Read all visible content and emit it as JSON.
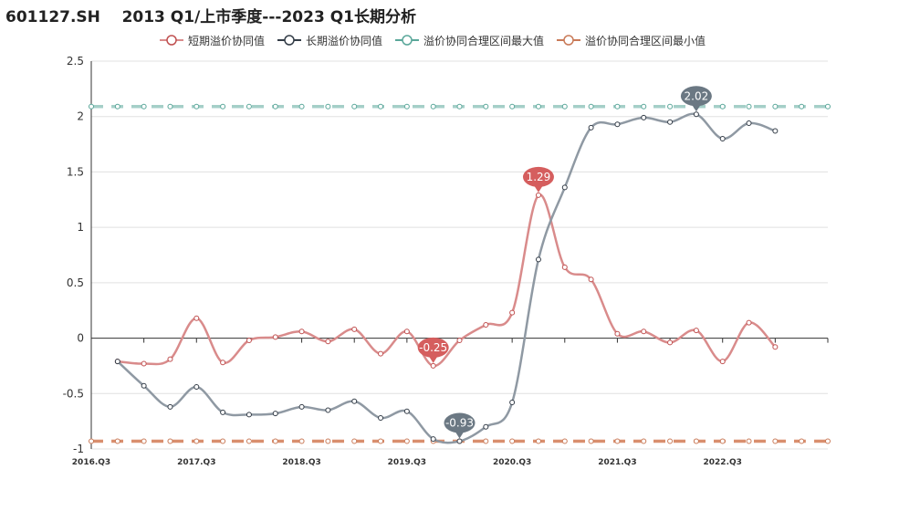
{
  "title": "601127.SH    2013 Q1/上市季度---2023 Q1长期分析",
  "colors": {
    "short": "#d98b8b",
    "short_marker": "#c05050",
    "long": "#8f99a3",
    "long_marker": "#333c47",
    "max": "#a5cfc8",
    "max_marker": "#5aa79a",
    "min": "#d98f6e",
    "min_marker": "#c97a58",
    "bubble_short": "#d55e5e",
    "bubble_long": "#6b7883",
    "grid": "#e0e0e0",
    "axis": "#333333"
  },
  "chart_data": {
    "type": "line",
    "x": [
      "2016.Q3",
      "2016.Q4",
      "2017.Q1",
      "2017.Q2",
      "2017.Q3",
      "2017.Q4",
      "2018.Q1",
      "2018.Q2",
      "2018.Q3",
      "2018.Q4",
      "2019.Q1",
      "2019.Q2",
      "2019.Q3",
      "2019.Q4",
      "2020.Q1",
      "2020.Q2",
      "2020.Q3",
      "2020.Q4",
      "2021.Q1",
      "2021.Q2",
      "2021.Q3",
      "2021.Q4",
      "2022.Q1",
      "2022.Q2",
      "2022.Q3",
      "2022.Q4",
      "2023.Q1",
      "2023.Q2",
      "2023.Q3"
    ],
    "xtick_labels": [
      "2016.Q3",
      "2017.Q3",
      "2018.Q3",
      "2019.Q3",
      "2020.Q3",
      "2021.Q3",
      "2022.Q3"
    ],
    "ylim": [
      -1,
      2.5
    ],
    "yticks": [
      -1,
      -0.5,
      0,
      0.5,
      1,
      1.5,
      2,
      2.5
    ],
    "series": [
      {
        "name": "短期溢价协同值",
        "key": "short",
        "values": [
          null,
          -0.21,
          -0.23,
          -0.19,
          0.18,
          -0.22,
          -0.02,
          0.01,
          0.06,
          -0.03,
          0.08,
          -0.14,
          0.06,
          -0.25,
          -0.02,
          0.12,
          0.23,
          1.29,
          0.64,
          0.53,
          0.04,
          0.06,
          -0.04,
          0.07,
          -0.21,
          0.14,
          -0.08,
          null,
          null
        ]
      },
      {
        "name": "长期溢价协同值",
        "key": "long",
        "values": [
          null,
          -0.21,
          -0.43,
          -0.62,
          -0.44,
          -0.67,
          -0.69,
          -0.68,
          -0.62,
          -0.65,
          -0.57,
          -0.72,
          -0.66,
          -0.91,
          -0.93,
          -0.8,
          -0.58,
          0.71,
          1.36,
          1.9,
          1.93,
          1.99,
          1.95,
          2.02,
          1.8,
          1.94,
          1.87,
          null,
          null
        ]
      },
      {
        "name": "溢价协同合理区间最大值",
        "key": "max",
        "values": [
          2.09,
          2.09,
          2.09,
          2.09,
          2.09,
          2.09,
          2.09,
          2.09,
          2.09,
          2.09,
          2.09,
          2.09,
          2.09,
          2.09,
          2.09,
          2.09,
          2.09,
          2.09,
          2.09,
          2.09,
          2.09,
          2.09,
          2.09,
          2.09,
          2.09,
          2.09,
          2.09,
          2.09,
          2.09
        ]
      },
      {
        "name": "溢价协同合理区间最小值",
        "key": "min",
        "values": [
          -0.93,
          -0.93,
          -0.93,
          -0.93,
          -0.93,
          -0.93,
          -0.93,
          -0.93,
          -0.93,
          -0.93,
          -0.93,
          -0.93,
          -0.93,
          -0.93,
          -0.93,
          -0.93,
          -0.93,
          -0.93,
          -0.93,
          -0.93,
          -0.93,
          -0.93,
          -0.93,
          -0.93,
          -0.93,
          -0.93,
          -0.93,
          -0.93,
          -0.93
        ]
      }
    ],
    "annotations": [
      {
        "series": "short",
        "index": 13,
        "label": "-0.25"
      },
      {
        "series": "short",
        "index": 17,
        "label": "1.29"
      },
      {
        "series": "long",
        "index": 14,
        "label": "-0.93"
      },
      {
        "series": "long",
        "index": 23,
        "label": "2.02"
      }
    ]
  }
}
